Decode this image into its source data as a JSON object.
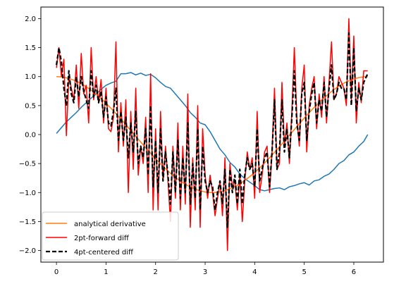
{
  "chart_data": {
    "type": "line",
    "title": "",
    "xlabel": "",
    "ylabel": "",
    "xlim": [
      -0.3145,
      6.5977
    ],
    "ylim": [
      -2.2,
      2.2
    ],
    "grid": false,
    "legend": {
      "placement": "lower-left"
    },
    "xticks": [
      0,
      1,
      2,
      3,
      4,
      5,
      6
    ],
    "xtick_labels": [
      "0",
      "1",
      "2",
      "3",
      "4",
      "5",
      "6"
    ],
    "yticks": [
      -2.0,
      -1.5,
      -1.0,
      -0.5,
      0.0,
      0.5,
      1.0,
      1.5,
      2.0
    ],
    "ytick_labels": [
      "−2.0",
      "−1.5",
      "−1.0",
      "−0.5",
      "0.0",
      "0.5",
      "1.0",
      "1.5",
      "2.0"
    ],
    "series": [
      {
        "name": "",
        "color": "#1f77b4",
        "dash": "solid",
        "width": 1.5,
        "x": [
          0.0,
          0.1,
          0.2,
          0.3,
          0.4,
          0.5,
          0.6,
          0.7,
          0.8,
          0.9,
          1.0,
          1.1,
          1.2,
          1.3,
          1.4,
          1.5,
          1.6,
          1.7,
          1.8,
          1.9,
          2.0,
          2.1,
          2.2,
          2.3,
          2.4,
          2.5,
          2.6,
          2.7,
          2.8,
          2.9,
          3.0,
          3.1,
          3.2,
          3.3,
          3.4,
          3.5,
          3.6,
          3.7,
          3.8,
          3.9,
          4.0,
          4.1,
          4.2,
          4.3,
          4.4,
          4.5,
          4.6,
          4.7,
          4.8,
          4.9,
          5.0,
          5.1,
          5.2,
          5.3,
          5.4,
          5.5,
          5.6,
          5.7,
          5.8,
          5.9,
          6.0,
          6.1,
          6.2,
          6.28
        ],
        "y": [
          0.02,
          0.12,
          0.22,
          0.3,
          0.38,
          0.47,
          0.55,
          0.63,
          0.7,
          0.78,
          0.85,
          0.89,
          0.92,
          1.05,
          1.05,
          1.07,
          1.03,
          1.06,
          1.02,
          1.04,
          0.98,
          0.9,
          0.83,
          0.8,
          0.7,
          0.6,
          0.5,
          0.38,
          0.3,
          0.2,
          0.17,
          0.05,
          -0.1,
          -0.25,
          -0.35,
          -0.48,
          -0.56,
          -0.68,
          -0.76,
          -0.82,
          -0.88,
          -0.95,
          -0.97,
          -0.95,
          -0.93,
          -0.92,
          -0.95,
          -0.9,
          -0.88,
          -0.85,
          -0.83,
          -0.87,
          -0.8,
          -0.78,
          -0.72,
          -0.68,
          -0.6,
          -0.5,
          -0.45,
          -0.35,
          -0.3,
          -0.2,
          -0.12,
          0.0
        ]
      },
      {
        "name": "analytical derivative",
        "color": "#ff7f0e",
        "dash": "solid",
        "width": 1.5,
        "x": [
          0.0,
          0.1,
          0.2,
          0.3,
          0.4,
          0.5,
          0.6,
          0.7,
          0.8,
          0.9,
          1.0,
          1.1,
          1.2,
          1.3,
          1.4,
          1.5,
          1.6,
          1.7,
          1.8,
          1.9,
          2.0,
          2.1,
          2.2,
          2.3,
          2.4,
          2.5,
          2.6,
          2.7,
          2.8,
          2.9,
          3.0,
          3.1,
          3.2,
          3.3,
          3.4,
          3.5,
          3.6,
          3.7,
          3.8,
          3.9,
          4.0,
          4.1,
          4.2,
          4.3,
          4.4,
          4.5,
          4.6,
          4.7,
          4.8,
          4.9,
          5.0,
          5.1,
          5.2,
          5.3,
          5.4,
          5.5,
          5.6,
          5.7,
          5.8,
          5.9,
          6.0,
          6.1,
          6.2,
          6.28
        ],
        "y": [
          1.0,
          0.995,
          0.98,
          0.955,
          0.921,
          0.878,
          0.825,
          0.765,
          0.697,
          0.622,
          0.54,
          0.454,
          0.362,
          0.267,
          0.17,
          0.071,
          -0.029,
          -0.129,
          -0.227,
          -0.323,
          -0.416,
          -0.505,
          -0.589,
          -0.666,
          -0.737,
          -0.801,
          -0.857,
          -0.904,
          -0.942,
          -0.971,
          -0.99,
          -0.999,
          -0.998,
          -0.987,
          -0.967,
          -0.936,
          -0.897,
          -0.848,
          -0.791,
          -0.726,
          -0.654,
          -0.575,
          -0.49,
          -0.401,
          -0.307,
          -0.211,
          -0.112,
          -0.012,
          0.087,
          0.186,
          0.284,
          0.378,
          0.469,
          0.554,
          0.635,
          0.709,
          0.776,
          0.835,
          0.886,
          0.927,
          0.96,
          0.983,
          0.996,
          1.0
        ]
      },
      {
        "name": "2pt-forward diff",
        "color": "#ff0000",
        "dash": "solid",
        "width": 1.5,
        "x": [
          0.0,
          0.05,
          0.1,
          0.15,
          0.2,
          0.25,
          0.3,
          0.35,
          0.4,
          0.45,
          0.5,
          0.55,
          0.6,
          0.65,
          0.7,
          0.75,
          0.8,
          0.85,
          0.9,
          0.95,
          1.0,
          1.05,
          1.1,
          1.15,
          1.2,
          1.25,
          1.3,
          1.35,
          1.4,
          1.45,
          1.5,
          1.55,
          1.6,
          1.65,
          1.7,
          1.75,
          1.8,
          1.85,
          1.9,
          1.95,
          2.0,
          2.05,
          2.1,
          2.15,
          2.2,
          2.25,
          2.3,
          2.35,
          2.4,
          2.45,
          2.5,
          2.55,
          2.6,
          2.65,
          2.7,
          2.75,
          2.8,
          2.85,
          2.9,
          2.95,
          3.0,
          3.05,
          3.1,
          3.15,
          3.2,
          3.25,
          3.3,
          3.35,
          3.4,
          3.45,
          3.5,
          3.55,
          3.6,
          3.65,
          3.7,
          3.75,
          3.8,
          3.85,
          3.9,
          3.95,
          4.0,
          4.05,
          4.1,
          4.15,
          4.2,
          4.25,
          4.3,
          4.35,
          4.4,
          4.45,
          4.5,
          4.55,
          4.6,
          4.65,
          4.7,
          4.75,
          4.8,
          4.85,
          4.9,
          4.95,
          5.0,
          5.05,
          5.1,
          5.15,
          5.2,
          5.25,
          5.3,
          5.35,
          5.4,
          5.45,
          5.5,
          5.55,
          5.6,
          5.65,
          5.7,
          5.75,
          5.8,
          5.85,
          5.9,
          5.95,
          6.0,
          6.05,
          6.1,
          6.15,
          6.2,
          6.28
        ],
        "y": [
          1.15,
          1.5,
          1.0,
          1.3,
          -0.02,
          1.0,
          0.8,
          0.6,
          1.2,
          0.45,
          1.4,
          0.7,
          0.85,
          0.2,
          1.5,
          0.6,
          1.0,
          0.55,
          0.95,
          0.2,
          0.8,
          0.1,
          0.05,
          0.3,
          1.6,
          -0.3,
          0.55,
          -0.2,
          0.6,
          -1.0,
          0.4,
          -0.6,
          0.8,
          -0.7,
          -0.2,
          -0.5,
          0.3,
          -1.0,
          1.05,
          -1.3,
          0.1,
          -1.3,
          0.4,
          -0.8,
          -0.2,
          -0.8,
          -1.5,
          -0.2,
          -1.1,
          0.2,
          -1.3,
          -0.2,
          -1.2,
          0.7,
          -1.6,
          -0.4,
          -1.3,
          0.5,
          -1.6,
          0.1,
          -0.7,
          -1.1,
          -0.7,
          -1.0,
          -1.4,
          -1.1,
          -0.8,
          -1.4,
          -0.4,
          -2.0,
          -0.5,
          -0.9,
          -0.8,
          -1.3,
          -0.7,
          -1.5,
          -0.8,
          -0.3,
          -0.6,
          -0.4,
          -1.1,
          0.4,
          -1.0,
          -0.7,
          -0.3,
          -0.2,
          -1.0,
          -0.3,
          0.8,
          -0.6,
          -0.5,
          0.9,
          -0.2,
          0.2,
          -0.5,
          0.4,
          1.5,
          0.3,
          -0.2,
          0.8,
          1.2,
          -0.3,
          0.5,
          0.8,
          1.0,
          0.1,
          0.7,
          0.3,
          1.0,
          0.2,
          0.9,
          1.6,
          0.6,
          0.7,
          1.0,
          0.9,
          0.8,
          0.5,
          2.0,
          0.6,
          1.7,
          0.2,
          0.9,
          0.55,
          1.1,
          1.1
        ]
      },
      {
        "name": "4pt-centered diff",
        "color": "#000000",
        "dash": "dashed",
        "width": 2.2,
        "x": [
          0.0,
          0.05,
          0.1,
          0.15,
          0.2,
          0.25,
          0.3,
          0.35,
          0.4,
          0.45,
          0.5,
          0.55,
          0.6,
          0.65,
          0.7,
          0.75,
          0.8,
          0.85,
          0.9,
          0.95,
          1.0,
          1.05,
          1.1,
          1.15,
          1.2,
          1.25,
          1.3,
          1.35,
          1.4,
          1.45,
          1.5,
          1.55,
          1.6,
          1.65,
          1.7,
          1.75,
          1.8,
          1.85,
          1.9,
          1.95,
          2.0,
          2.05,
          2.1,
          2.15,
          2.2,
          2.25,
          2.3,
          2.35,
          2.4,
          2.45,
          2.5,
          2.55,
          2.6,
          2.65,
          2.7,
          2.75,
          2.8,
          2.85,
          2.9,
          2.95,
          3.0,
          3.05,
          3.1,
          3.15,
          3.2,
          3.25,
          3.3,
          3.35,
          3.4,
          3.45,
          3.5,
          3.55,
          3.6,
          3.65,
          3.7,
          3.75,
          3.8,
          3.85,
          3.9,
          3.95,
          4.0,
          4.05,
          4.1,
          4.15,
          4.2,
          4.25,
          4.3,
          4.35,
          4.4,
          4.45,
          4.5,
          4.55,
          4.6,
          4.65,
          4.7,
          4.75,
          4.8,
          4.85,
          4.9,
          4.95,
          5.0,
          5.05,
          5.1,
          5.15,
          5.2,
          5.25,
          5.3,
          5.35,
          5.4,
          5.45,
          5.5,
          5.55,
          5.6,
          5.65,
          5.7,
          5.75,
          5.8,
          5.85,
          5.9,
          5.95,
          6.0,
          6.05,
          6.1,
          6.15,
          6.2,
          6.28
        ],
        "y": [
          1.2,
          1.5,
          1.25,
          0.8,
          0.5,
          1.1,
          0.7,
          0.55,
          1.0,
          0.65,
          1.0,
          0.75,
          0.6,
          0.45,
          1.1,
          0.65,
          0.85,
          0.55,
          0.75,
          0.3,
          0.65,
          0.2,
          0.15,
          0.4,
          0.8,
          -0.1,
          0.4,
          -0.1,
          0.3,
          -0.4,
          0.2,
          -0.3,
          0.4,
          -0.5,
          -0.2,
          -0.4,
          0.1,
          -0.7,
          0.5,
          -0.9,
          -0.1,
          -1.0,
          0.1,
          -0.8,
          -0.3,
          -0.7,
          -1.2,
          -0.3,
          -1.0,
          -0.1,
          -1.1,
          -0.4,
          -1.0,
          0.2,
          -1.2,
          -0.5,
          -1.1,
          0.1,
          -1.3,
          -0.2,
          -0.8,
          -1.0,
          -0.8,
          -0.9,
          -1.3,
          -1.0,
          -0.8,
          -1.2,
          -0.6,
          -1.6,
          -0.6,
          -1.0,
          -0.7,
          -1.2,
          -0.6,
          -1.2,
          -0.7,
          -0.4,
          -0.6,
          -0.5,
          -0.9,
          0.1,
          -0.8,
          -0.6,
          -0.4,
          -0.3,
          -0.9,
          -0.3,
          0.6,
          -0.6,
          -0.3,
          0.6,
          -0.3,
          0.1,
          -0.4,
          0.3,
          1.1,
          0.2,
          -0.1,
          0.7,
          0.9,
          -0.1,
          0.4,
          0.7,
          0.9,
          0.2,
          0.6,
          0.4,
          0.9,
          0.3,
          0.8,
          1.2,
          0.6,
          0.7,
          0.9,
          0.8,
          0.8,
          0.6,
          1.75,
          0.5,
          1.5,
          0.4,
          0.8,
          0.6,
          0.9,
          1.05
        ]
      }
    ]
  }
}
